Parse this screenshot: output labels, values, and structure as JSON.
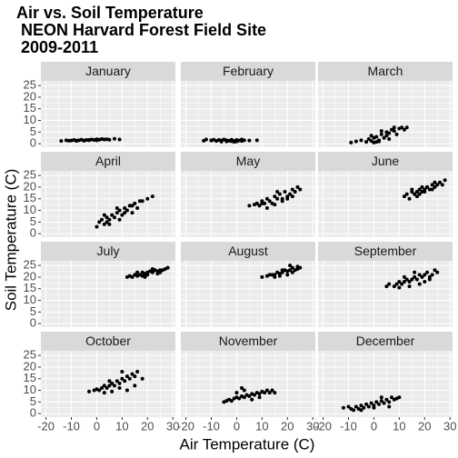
{
  "title": [
    "Air vs. Soil Temperature",
    " NEON Harvard Forest Field Site",
    " 2009-2011"
  ],
  "x_label": "Air Temperature (C)",
  "y_label": "Soil Temperature (C)",
  "axes": {
    "xlim": [
      -22,
      31
    ],
    "ylim": [
      -1.5,
      27
    ],
    "xticks": [
      -20,
      -10,
      0,
      10,
      20,
      30
    ],
    "yticks": [
      0,
      5,
      10,
      15,
      20,
      25
    ],
    "grid": true,
    "color": "#000000"
  },
  "chart_data": [
    {
      "type": "scatter",
      "title": "January",
      "x": [
        -14,
        -12,
        -11,
        -10,
        -9,
        -8,
        -7,
        -6,
        -5,
        -4,
        -3,
        -2,
        -1,
        0,
        1,
        2,
        3,
        4,
        5,
        -5,
        -3,
        -8,
        0,
        7,
        9
      ],
      "y": [
        1.2,
        1.5,
        1.3,
        1.4,
        1.6,
        1.2,
        1.5,
        1.7,
        1.4,
        1.6,
        1.5,
        1.8,
        1.6,
        1.9,
        1.7,
        2.0,
        1.8,
        1.9,
        1.7,
        1.3,
        1.6,
        1.4,
        1.5,
        2.1,
        1.8
      ]
    },
    {
      "type": "scatter",
      "title": "February",
      "x": [
        -13,
        -12,
        -10,
        -9,
        -8,
        -7,
        -6,
        -5,
        -4,
        -3,
        -2,
        -1,
        0,
        1,
        2,
        3,
        -6,
        -4,
        -2,
        0,
        2,
        5,
        8,
        -10,
        -1
      ],
      "y": [
        1.3,
        1.8,
        1.5,
        1.7,
        1.2,
        1.6,
        1.4,
        1.8,
        1.5,
        1.3,
        1.7,
        1.2,
        1.6,
        1.4,
        1.8,
        1.5,
        0.9,
        1.0,
        1.1,
        1.0,
        1.2,
        1.4,
        1.5,
        1.4,
        0.8
      ]
    },
    {
      "type": "scatter",
      "title": "March",
      "x": [
        -9,
        -7,
        -5,
        -3,
        -2,
        -1,
        0,
        1,
        2,
        3,
        4,
        5,
        6,
        7,
        8,
        9,
        10,
        11,
        12,
        13,
        0,
        2,
        5,
        -1,
        3,
        6,
        8,
        1
      ],
      "y": [
        0.5,
        1.0,
        1.5,
        0.8,
        2.0,
        1.2,
        2.5,
        3.0,
        1.5,
        4.0,
        2.5,
        5.0,
        4.5,
        6.0,
        5.5,
        4.0,
        6.5,
        7.0,
        6.0,
        7.0,
        0.5,
        1.0,
        3.5,
        3.5,
        5.5,
        2.0,
        7,
        0.8
      ]
    },
    {
      "type": "scatter",
      "title": "April",
      "x": [
        0,
        1,
        2,
        3,
        4,
        5,
        6,
        7,
        8,
        9,
        10,
        11,
        12,
        13,
        14,
        15,
        16,
        18,
        20,
        22,
        3,
        5,
        8,
        11,
        14,
        17,
        4,
        9
      ],
      "y": [
        3,
        5,
        6,
        4,
        7,
        6,
        8,
        7,
        9,
        10,
        8,
        11,
        10,
        12,
        9,
        13,
        11,
        14,
        15,
        16,
        8,
        4,
        11,
        9,
        12,
        14,
        5,
        6
      ]
    },
    {
      "type": "scatter",
      "title": "May",
      "x": [
        5,
        7,
        8,
        9,
        10,
        11,
        12,
        13,
        14,
        15,
        16,
        17,
        18,
        19,
        20,
        21,
        22,
        23,
        24,
        25,
        12,
        15,
        18,
        20,
        10,
        16,
        22
      ],
      "y": [
        12,
        12.5,
        13,
        12,
        14,
        13,
        15,
        14,
        13,
        16,
        15,
        17,
        15,
        18,
        16,
        17,
        19,
        18,
        20,
        19,
        11,
        12.5,
        14,
        15,
        13,
        18,
        16
      ]
    },
    {
      "type": "scatter",
      "title": "June",
      "x": [
        12,
        13,
        14,
        15,
        16,
        17,
        18,
        19,
        20,
        21,
        22,
        23,
        24,
        25,
        26,
        27,
        28,
        15,
        18,
        21,
        24,
        20,
        17,
        19,
        23
      ],
      "y": [
        16,
        17,
        15,
        18,
        17,
        18,
        19,
        18,
        19,
        20,
        19,
        21,
        20,
        21,
        22,
        21,
        23,
        19,
        17,
        20,
        22,
        18,
        16,
        20,
        19
      ]
    },
    {
      "type": "scatter",
      "title": "July",
      "x": [
        12,
        13,
        14,
        15,
        16,
        17,
        18,
        19,
        20,
        21,
        22,
        23,
        24,
        25,
        26,
        27,
        28,
        16,
        19,
        22,
        25,
        20,
        18,
        24
      ],
      "y": [
        20,
        20.5,
        20,
        21,
        20.5,
        21,
        22,
        21.5,
        22,
        22.5,
        22,
        23,
        22.5,
        23,
        23,
        23.5,
        24,
        22,
        20,
        23.5,
        22,
        21,
        20.5,
        21.5
      ]
    },
    {
      "type": "scatter",
      "title": "August",
      "x": [
        10,
        12,
        14,
        15,
        16,
        17,
        18,
        19,
        20,
        21,
        22,
        23,
        24,
        25,
        15,
        18,
        20,
        22,
        24,
        13,
        17,
        21
      ],
      "y": [
        20,
        20.5,
        21,
        21,
        22,
        21.5,
        22,
        23,
        22.5,
        23,
        24,
        23,
        24.5,
        24,
        20,
        23,
        21,
        22,
        23.5,
        21,
        20.5,
        25
      ]
    },
    {
      "type": "scatter",
      "title": "September",
      "x": [
        5,
        6,
        8,
        9,
        10,
        11,
        12,
        13,
        14,
        15,
        16,
        17,
        18,
        19,
        20,
        21,
        22,
        23,
        24,
        25,
        10,
        14,
        18,
        22,
        12,
        16,
        20
      ],
      "y": [
        16,
        17,
        16,
        17,
        18,
        17,
        18,
        19,
        18,
        19,
        20,
        19,
        21,
        20,
        21,
        22,
        20,
        21,
        23,
        22,
        15.5,
        16,
        17,
        19,
        20,
        22,
        18
      ]
    },
    {
      "type": "scatter",
      "title": "October",
      "x": [
        -3,
        -1,
        0,
        1,
        2,
        3,
        4,
        5,
        6,
        7,
        8,
        9,
        10,
        11,
        12,
        13,
        14,
        15,
        16,
        18,
        3,
        6,
        9,
        12,
        15,
        5,
        10
      ],
      "y": [
        9.5,
        10,
        10.5,
        10,
        11,
        12,
        11,
        12,
        13,
        12,
        14,
        13,
        15,
        14,
        16,
        15,
        17,
        16,
        18,
        15,
        9,
        9.5,
        11,
        10,
        12,
        14,
        18
      ]
    },
    {
      "type": "scatter",
      "title": "November",
      "x": [
        -5,
        -4,
        -3,
        -2,
        -1,
        0,
        1,
        2,
        3,
        4,
        5,
        6,
        7,
        8,
        9,
        10,
        11,
        12,
        13,
        14,
        15,
        0,
        3,
        6,
        9,
        2
      ],
      "y": [
        5,
        5.5,
        6,
        5.5,
        6.5,
        7,
        6.5,
        7.5,
        7,
        8,
        7.5,
        8.5,
        8,
        9,
        8.5,
        9.5,
        9,
        10,
        9,
        10,
        9,
        9,
        10,
        6,
        7,
        11
      ]
    },
    {
      "type": "scatter",
      "title": "December",
      "x": [
        -12,
        -10,
        -9,
        -8,
        -7,
        -6,
        -5,
        -4,
        -3,
        -2,
        -1,
        0,
        1,
        2,
        3,
        4,
        5,
        6,
        7,
        8,
        9,
        10,
        -5,
        0,
        3,
        6
      ],
      "y": [
        2.5,
        3,
        2,
        1.5,
        3,
        2,
        3.5,
        2.5,
        4,
        3,
        4.5,
        3.5,
        5,
        4,
        5.5,
        4.5,
        6,
        5,
        7,
        6,
        6.5,
        7,
        1.5,
        2.5,
        7,
        3
      ]
    }
  ]
}
